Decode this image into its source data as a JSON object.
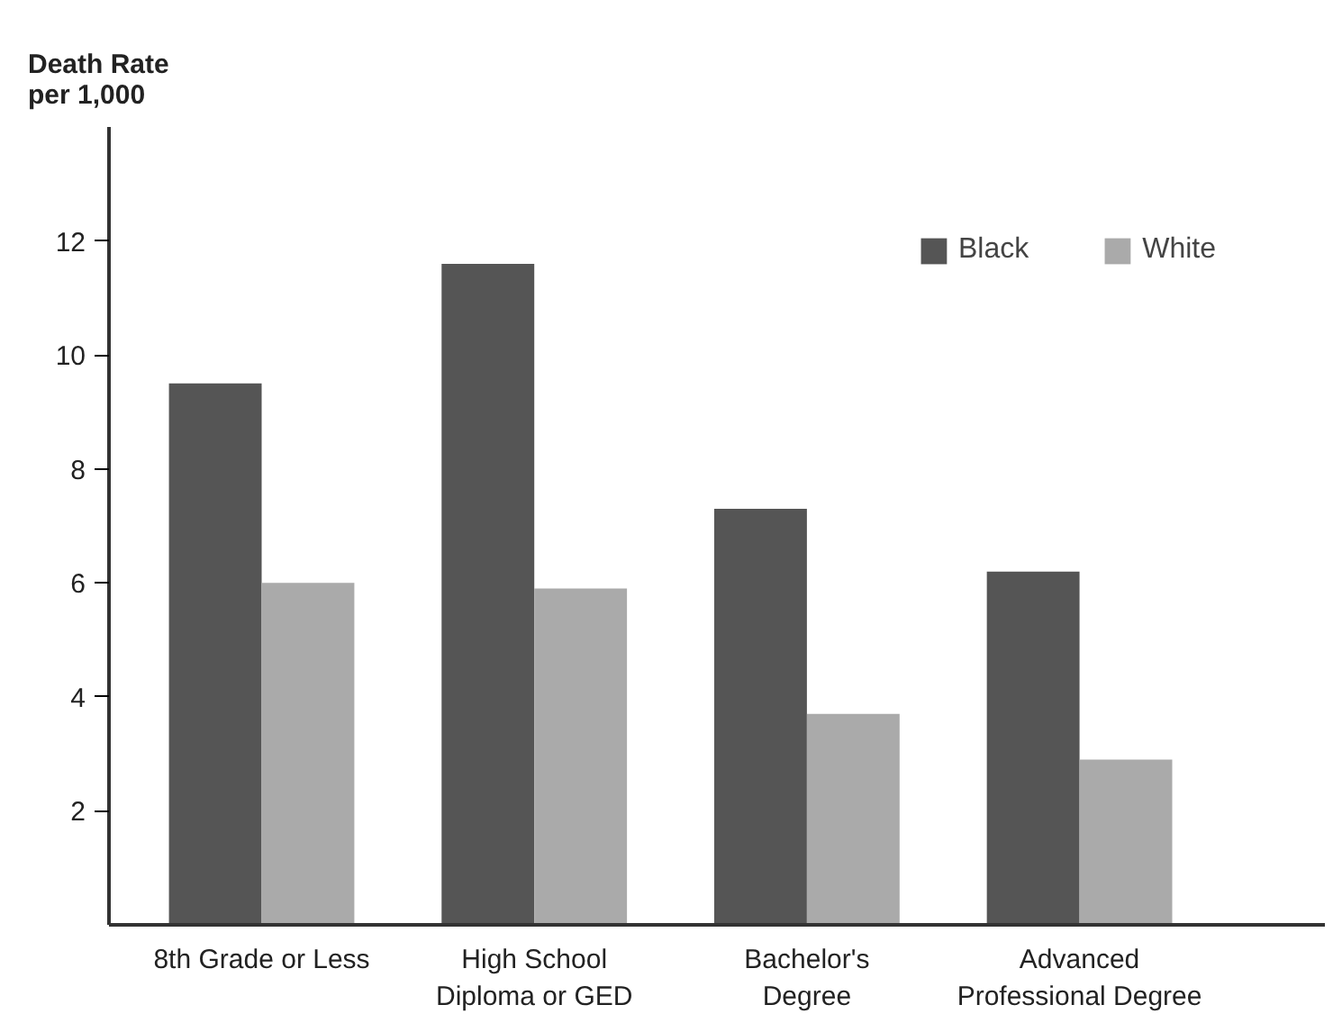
{
  "chart_data": {
    "type": "bar",
    "ylabel": "Death Rate\nper 1,000",
    "categories": [
      "8th Grade or Less",
      "High School\nDiploma or GED",
      "Bachelor's\nDegree",
      "Advanced\nProfessional Degree"
    ],
    "series": [
      {
        "name": "Black",
        "color": "#555555",
        "values": [
          9.5,
          11.6,
          7.3,
          6.2
        ]
      },
      {
        "name": "White",
        "color": "#aaaaaa",
        "values": [
          6.0,
          5.9,
          3.7,
          2.9
        ]
      }
    ],
    "ylim": [
      0,
      14
    ],
    "yticks": [
      2,
      4,
      6,
      8,
      10,
      12
    ],
    "grid": false,
    "legend": "top right"
  }
}
